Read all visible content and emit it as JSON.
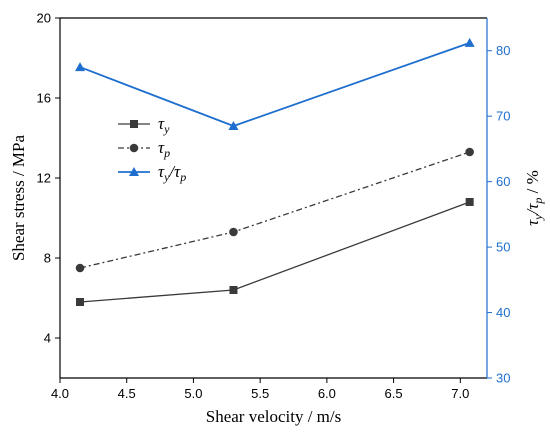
{
  "chart_data": {
    "type": "line",
    "xlabel": "Shear velocity / m/s",
    "ylabel": "Shear stress / MPa",
    "y2label": {
      "main": "τ",
      "sub1": "y",
      "slash": "/τ",
      "sub2": "p",
      "unit": " / %"
    },
    "xlim": [
      4.0,
      7.2
    ],
    "ylim": [
      2,
      20
    ],
    "y2lim": [
      30,
      85
    ],
    "xticks": [
      "4.0",
      "4.5",
      "5.0",
      "5.5",
      "6.0",
      "6.5",
      "7.0"
    ],
    "xtick_values": [
      4.0,
      4.5,
      5.0,
      5.5,
      6.0,
      6.5,
      7.0
    ],
    "yticks": [
      "4",
      "8",
      "12",
      "16",
      "20"
    ],
    "ytick_values": [
      4,
      8,
      12,
      16,
      20
    ],
    "y2ticks": [
      "30",
      "40",
      "50",
      "60",
      "70",
      "80"
    ],
    "y2tick_values": [
      30,
      40,
      50,
      60,
      70,
      80
    ],
    "grid": false,
    "legend_position": "upper-left-center",
    "colors": {
      "axis": "#000000",
      "right_axis": "#1f6fce",
      "series1": "#3a3a3a",
      "series2": "#3a3a3a",
      "series3": "#1f6fce"
    },
    "series": [
      {
        "name": "τy",
        "name_main": "τ",
        "name_sub": "y",
        "name_extra": "",
        "name_extra_sub": "",
        "axis": "left",
        "marker": "square",
        "dash": "solid",
        "x": [
          4.15,
          5.3,
          7.07
        ],
        "values": [
          5.8,
          6.4,
          10.8
        ]
      },
      {
        "name": "τp",
        "name_main": "τ",
        "name_sub": "p",
        "name_extra": "",
        "name_extra_sub": "",
        "axis": "left",
        "marker": "circle",
        "dash": "dashdot",
        "x": [
          4.15,
          5.3,
          7.07
        ],
        "values": [
          7.5,
          9.3,
          13.3
        ]
      },
      {
        "name": "τy/τp",
        "name_main": "τ",
        "name_sub": "y",
        "name_extra": "/τ",
        "name_extra_sub": "p",
        "axis": "right",
        "marker": "triangle",
        "dash": "solid",
        "x": [
          4.15,
          5.3,
          7.07
        ],
        "values": [
          77.5,
          68.5,
          81.2
        ]
      }
    ]
  }
}
